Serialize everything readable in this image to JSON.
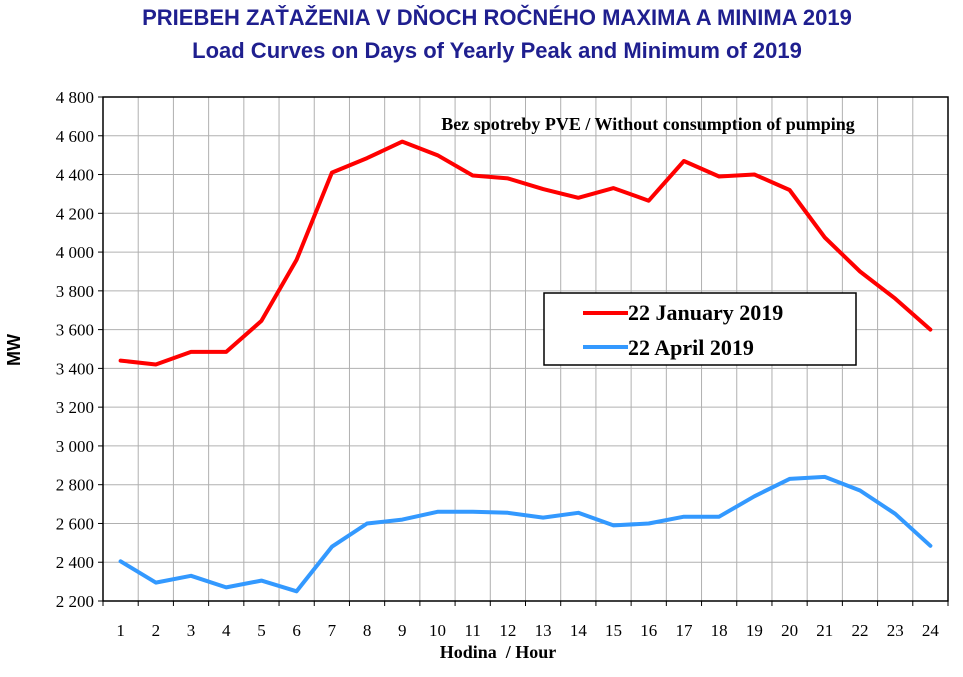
{
  "chart_data": {
    "type": "line",
    "title": "PRIEBEH ZAŤAŽENIA V DŇOCH ROČNÉHO MAXIMA A MINIMA 2019",
    "subtitle": "Load Curves on Days of Yearly Peak and Minimum of 2019",
    "xlabel": "Hodina  / Hour",
    "ylabel": "MW",
    "annotation": "Bez spotreby PVE / Without consumption of pumping",
    "x": [
      1,
      2,
      3,
      4,
      5,
      6,
      7,
      8,
      9,
      10,
      11,
      12,
      13,
      14,
      15,
      16,
      17,
      18,
      19,
      20,
      21,
      22,
      23,
      24
    ],
    "x_tick_labels": [
      "1",
      "2",
      "3",
      "4",
      "5",
      "6",
      "7",
      "8",
      "9",
      "10",
      "11",
      "12",
      "13",
      "14",
      "15",
      "16",
      "17",
      "18",
      "19",
      "20",
      "21",
      "22",
      "23",
      "24"
    ],
    "ylim": [
      2200,
      4800
    ],
    "y_ticks": [
      2200,
      2400,
      2600,
      2800,
      3000,
      3200,
      3400,
      3600,
      3800,
      4000,
      4200,
      4400,
      4600,
      4800
    ],
    "y_tick_labels": [
      "2 200",
      "2 400",
      "2 600",
      "2 800",
      "3 000",
      "3 200",
      "3 400",
      "3 600",
      "3 800",
      "4 000",
      "4 200",
      "4 400",
      "4 600",
      "4 800"
    ],
    "grid": true,
    "legend_position": "center-right",
    "series": [
      {
        "name": "22 January 2019",
        "color": "#ff0000",
        "values": [
          3440,
          3420,
          3485,
          3485,
          3645,
          3960,
          4410,
          4485,
          4570,
          4500,
          4395,
          4380,
          4325,
          4280,
          4330,
          4265,
          4470,
          4390,
          4400,
          4320,
          4075,
          3900,
          3760,
          3600
        ]
      },
      {
        "name": "22 April 2019",
        "color": "#3399ff",
        "values": [
          2405,
          2295,
          2330,
          2270,
          2305,
          2250,
          2480,
          2600,
          2620,
          2660,
          2660,
          2655,
          2630,
          2655,
          2590,
          2600,
          2635,
          2635,
          2740,
          2830,
          2840,
          2770,
          2650,
          2485
        ]
      }
    ]
  }
}
